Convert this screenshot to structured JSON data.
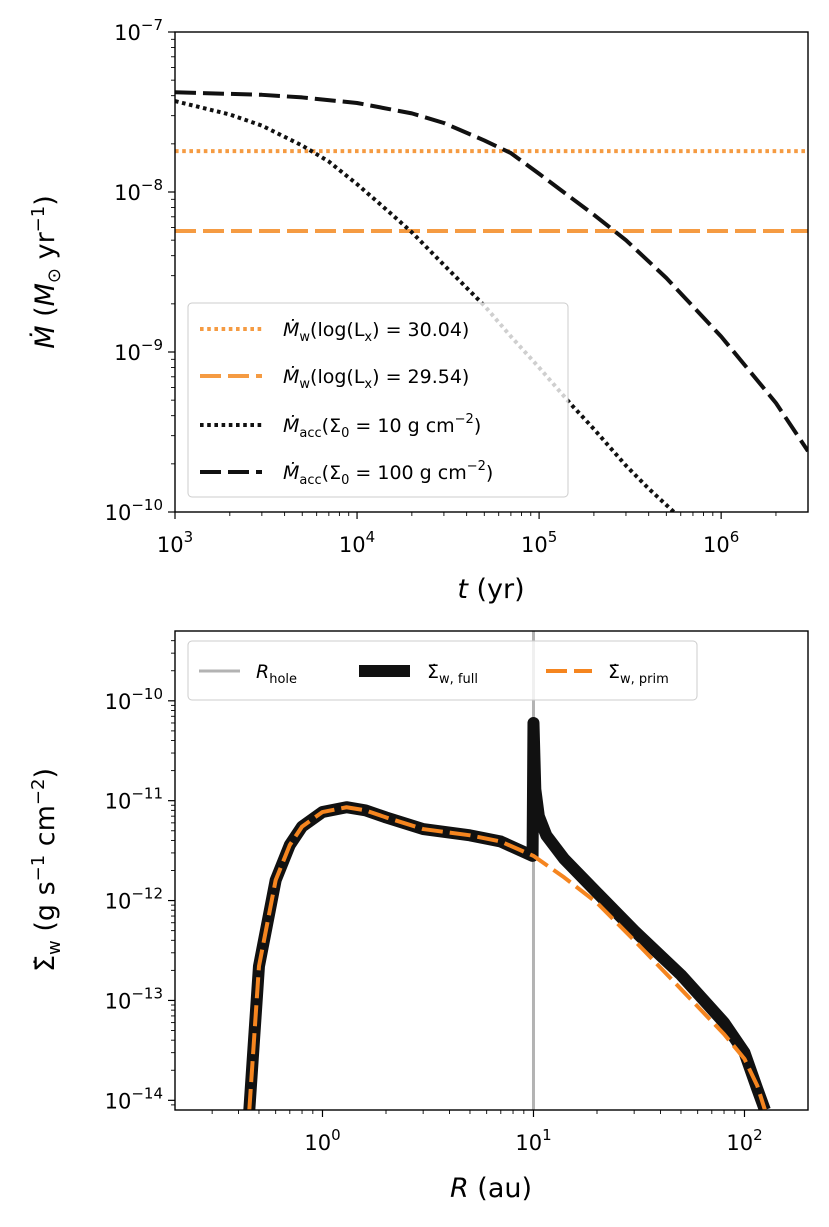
{
  "chart_data": [
    {
      "type": "line",
      "xscale": "log",
      "yscale": "log",
      "xlim": [
        1000,
        3000000
      ],
      "ylim": [
        1e-10,
        1e-07
      ],
      "xlabel": "t (yr)",
      "ylabel": "Ṁ (M⊙ yr⁻¹)",
      "xticks": [
        {
          "value": 1000,
          "base": "10",
          "exp": "3"
        },
        {
          "value": 10000,
          "base": "10",
          "exp": "4"
        },
        {
          "value": 100000,
          "base": "10",
          "exp": "5"
        },
        {
          "value": 1000000,
          "base": "10",
          "exp": "6"
        }
      ],
      "yticks": [
        {
          "value": 1e-10,
          "base": "10",
          "exp": "−10"
        },
        {
          "value": 1e-09,
          "base": "10",
          "exp": "−9"
        },
        {
          "value": 1e-08,
          "base": "10",
          "exp": "−8"
        },
        {
          "value": 1e-07,
          "base": "10",
          "exp": "−7"
        }
      ],
      "legend_position": "lower-left",
      "series": [
        {
          "name": "Mdot_w(log(Lx)=30.04)",
          "label_main": "Ṁ",
          "label_sub": "w",
          "label_rest": "(log(L",
          "label_sub2": "x",
          "label_end": ") = 30.04)",
          "color": "#F59B42",
          "style": "dotted",
          "points": [
            [
              1000,
              1.8e-08
            ],
            [
              3000000,
              1.8e-08
            ]
          ]
        },
        {
          "name": "Mdot_w(log(Lx)=29.54)",
          "label_main": "Ṁ",
          "label_sub": "w",
          "label_rest": "(log(L",
          "label_sub2": "x",
          "label_end": ") = 29.54)",
          "color": "#F59B42",
          "style": "dashed",
          "points": [
            [
              1000,
              5.7e-09
            ],
            [
              3000000,
              5.7e-09
            ]
          ]
        },
        {
          "name": "Mdot_acc(Sigma0=10 g cm-2)",
          "label_main": "Ṁ",
          "label_sub": "acc",
          "label_rest": "(Σ",
          "label_sub2": "0",
          "label_end": " = 10 g cm",
          "label_sup": "−2",
          "label_close": ")",
          "color": "#111111",
          "style": "dotted",
          "points": [
            [
              1000,
              3.7e-08
            ],
            [
              2000,
              3.05e-08
            ],
            [
              3000,
              2.6e-08
            ],
            [
              5000,
              1.95e-08
            ],
            [
              7000,
              1.55e-08
            ],
            [
              10000,
              1.12e-08
            ],
            [
              15000,
              7.5e-09
            ],
            [
              20000,
              5.6e-09
            ],
            [
              30000,
              3.5e-09
            ],
            [
              50000,
              1.95e-09
            ],
            [
              70000,
              1.25e-09
            ],
            [
              100000,
              8e-10
            ],
            [
              150000,
              4.7e-10
            ],
            [
              200000,
              3.3e-10
            ],
            [
              300000,
              1.95e-10
            ],
            [
              400000,
              1.4e-10
            ],
            [
              550000,
              1e-10
            ]
          ]
        },
        {
          "name": "Mdot_acc(Sigma0=100 g cm-2)",
          "label_main": "Ṁ",
          "label_sub": "acc",
          "label_rest": "(Σ",
          "label_sub2": "0",
          "label_end": " = 100 g cm",
          "label_sup": "−2",
          "label_close": ")",
          "color": "#111111",
          "style": "dashed",
          "points": [
            [
              1000,
              4.2e-08
            ],
            [
              3000,
              4.05e-08
            ],
            [
              5000,
              3.9e-08
            ],
            [
              10000,
              3.6e-08
            ],
            [
              20000,
              3.1e-08
            ],
            [
              30000,
              2.7e-08
            ],
            [
              50000,
              2.1e-08
            ],
            [
              70000,
              1.75e-08
            ],
            [
              100000,
              1.3e-08
            ],
            [
              200000,
              7.2e-09
            ],
            [
              300000,
              5e-09
            ],
            [
              500000,
              2.9e-09
            ],
            [
              1000000,
              1.25e-09
            ],
            [
              2000000,
              4.8e-10
            ],
            [
              3000000,
              2.4e-10
            ]
          ]
        }
      ]
    },
    {
      "type": "line",
      "xscale": "log",
      "yscale": "log",
      "xlim": [
        0.2,
        200
      ],
      "ylim": [
        8e-15,
        5e-10
      ],
      "xlabel": "R (au)",
      "ylabel": "Σ̇w (g s⁻¹ cm⁻²)",
      "xticks": [
        {
          "value": 1,
          "base": "10",
          "exp": "0"
        },
        {
          "value": 10,
          "base": "10",
          "exp": "1"
        },
        {
          "value": 100,
          "base": "10",
          "exp": "2"
        }
      ],
      "yticks": [
        {
          "value": 1e-14,
          "base": "10",
          "exp": "−14"
        },
        {
          "value": 1e-13,
          "base": "10",
          "exp": "−13"
        },
        {
          "value": 1e-12,
          "base": "10",
          "exp": "−12"
        },
        {
          "value": 1e-11,
          "base": "10",
          "exp": "−11"
        },
        {
          "value": 1e-10,
          "base": "10",
          "exp": "−10"
        }
      ],
      "legend_position": "top",
      "vline": {
        "x": 10,
        "label": "R",
        "label_sub": "hole",
        "color": "#b3b3b3"
      },
      "series": [
        {
          "name": "Sigma_dot_w_full",
          "label_main": "Σ̇",
          "label_sub": "w, full",
          "color": "#111111",
          "style": "solid-thick",
          "points": [
            [
              0.45,
              8e-15
            ],
            [
              0.5,
              2.2e-13
            ],
            [
              0.6,
              1.6e-12
            ],
            [
              0.7,
              3.6e-12
            ],
            [
              0.8,
              5.5e-12
            ],
            [
              1.0,
              7.7e-12
            ],
            [
              1.3,
              8.6e-12
            ],
            [
              1.6,
              8e-12
            ],
            [
              2.0,
              6.8e-12
            ],
            [
              3.0,
              5.2e-12
            ],
            [
              5.0,
              4.5e-12
            ],
            [
              7.0,
              3.9e-12
            ],
            [
              9.9,
              2.8e-12
            ],
            [
              10.0,
              6e-11
            ],
            [
              10.2,
              1.3e-11
            ],
            [
              10.6,
              7e-12
            ],
            [
              11.5,
              4.5e-12
            ],
            [
              14,
              2.6e-12
            ],
            [
              20,
              1.2e-12
            ],
            [
              30,
              5e-13
            ],
            [
              50,
              1.8e-13
            ],
            [
              80,
              6e-14
            ],
            [
              100,
              3e-14
            ],
            [
              115,
              1.3e-14
            ],
            [
              125,
              8e-15
            ]
          ]
        },
        {
          "name": "Sigma_dot_w_prim",
          "label_main": "Σ̇",
          "label_sub": "w, prim",
          "color": "#F5851F",
          "style": "dashed",
          "points": [
            [
              0.45,
              8e-15
            ],
            [
              0.5,
              2.2e-13
            ],
            [
              0.6,
              1.6e-12
            ],
            [
              0.7,
              3.6e-12
            ],
            [
              0.8,
              5.5e-12
            ],
            [
              1.0,
              7.7e-12
            ],
            [
              1.3,
              8.6e-12
            ],
            [
              1.6,
              8e-12
            ],
            [
              2.0,
              6.8e-12
            ],
            [
              3.0,
              5.2e-12
            ],
            [
              5.0,
              4.5e-12
            ],
            [
              7.0,
              3.9e-12
            ],
            [
              10.0,
              2.8e-12
            ],
            [
              14,
              1.7e-12
            ],
            [
              20,
              9.5e-13
            ],
            [
              30,
              4e-13
            ],
            [
              50,
              1.3e-13
            ],
            [
              80,
              4.6e-14
            ],
            [
              100,
              2.6e-14
            ],
            [
              115,
              1.4e-14
            ],
            [
              125,
              8e-15
            ]
          ]
        }
      ]
    }
  ]
}
